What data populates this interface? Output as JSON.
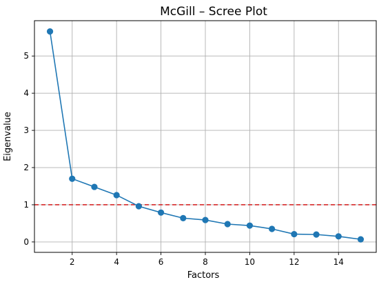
{
  "chart_data": {
    "type": "line",
    "title": "McGill – Scree Plot",
    "xlabel": "Factors",
    "ylabel": "Eigenvalue",
    "xlim": [
      0.3,
      15.7
    ],
    "ylim": [
      -0.28,
      5.95
    ],
    "xticks": [
      2,
      4,
      6,
      8,
      10,
      12,
      14
    ],
    "yticks": [
      0,
      1,
      2,
      3,
      4,
      5
    ],
    "grid": true,
    "series": [
      {
        "color": "#1f77b4",
        "marker": "circle",
        "x": [
          1,
          2,
          3,
          4,
          5,
          6,
          7,
          8,
          9,
          10,
          11,
          12,
          13,
          14,
          15
        ],
        "y": [
          5.66,
          1.7,
          1.48,
          1.26,
          0.96,
          0.79,
          0.64,
          0.59,
          0.48,
          0.44,
          0.35,
          0.21,
          0.2,
          0.15,
          0.07
        ]
      }
    ],
    "reference_line": {
      "orientation": "horizontal",
      "y": 1,
      "color": "#d62728",
      "style": "dashed"
    }
  }
}
